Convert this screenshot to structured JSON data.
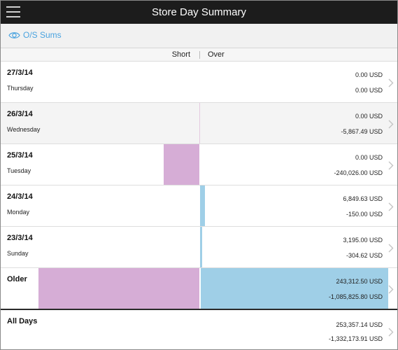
{
  "header": {
    "title": "Store Day Summary",
    "menu_icon": "hamburger-menu-icon"
  },
  "toolbar": {
    "os_sums_label": "O/S Sums",
    "os_sums_icon": "eye-icon",
    "accent_color": "#4aa3df"
  },
  "columns": {
    "short_label": "Short",
    "over_label": "Over"
  },
  "colors": {
    "short_bar": "#d6add6",
    "over_bar": "#9fcfe7",
    "title_bar": "#1c1c1c"
  },
  "rows": [
    {
      "date": "27/3/14",
      "day": "Thursday",
      "over": "0.00 USD",
      "short": "0.00 USD",
      "short_fraction": 0.0,
      "over_fraction": 0.0
    },
    {
      "date": "26/3/14",
      "day": "Wednesday",
      "over": "0.00 USD",
      "short": "-5,867.49 USD",
      "short_fraction": 0.005,
      "over_fraction": 0.0
    },
    {
      "date": "25/3/14",
      "day": "Tuesday",
      "over": "0.00 USD",
      "short": "-240,026.00 USD",
      "short_fraction": 0.18,
      "over_fraction": 0.0
    },
    {
      "date": "24/3/14",
      "day": "Monday",
      "over": "6,849.63 USD",
      "short": "-150.00 USD",
      "short_fraction": 0.0,
      "over_fraction": 0.025
    },
    {
      "date": "23/3/14",
      "day": "Sunday",
      "over": "3,195.00 USD",
      "short": "-304.62 USD",
      "short_fraction": 0.0,
      "over_fraction": 0.012
    },
    {
      "date": "Older",
      "day": "",
      "over": "243,312.50 USD",
      "short": "-1,085,825.80 USD",
      "short_fraction": 0.81,
      "over_fraction": 1.0
    }
  ],
  "totals": {
    "label": "All Days",
    "over": "253,357.14 USD",
    "short": "-1,332,173.91 USD"
  }
}
